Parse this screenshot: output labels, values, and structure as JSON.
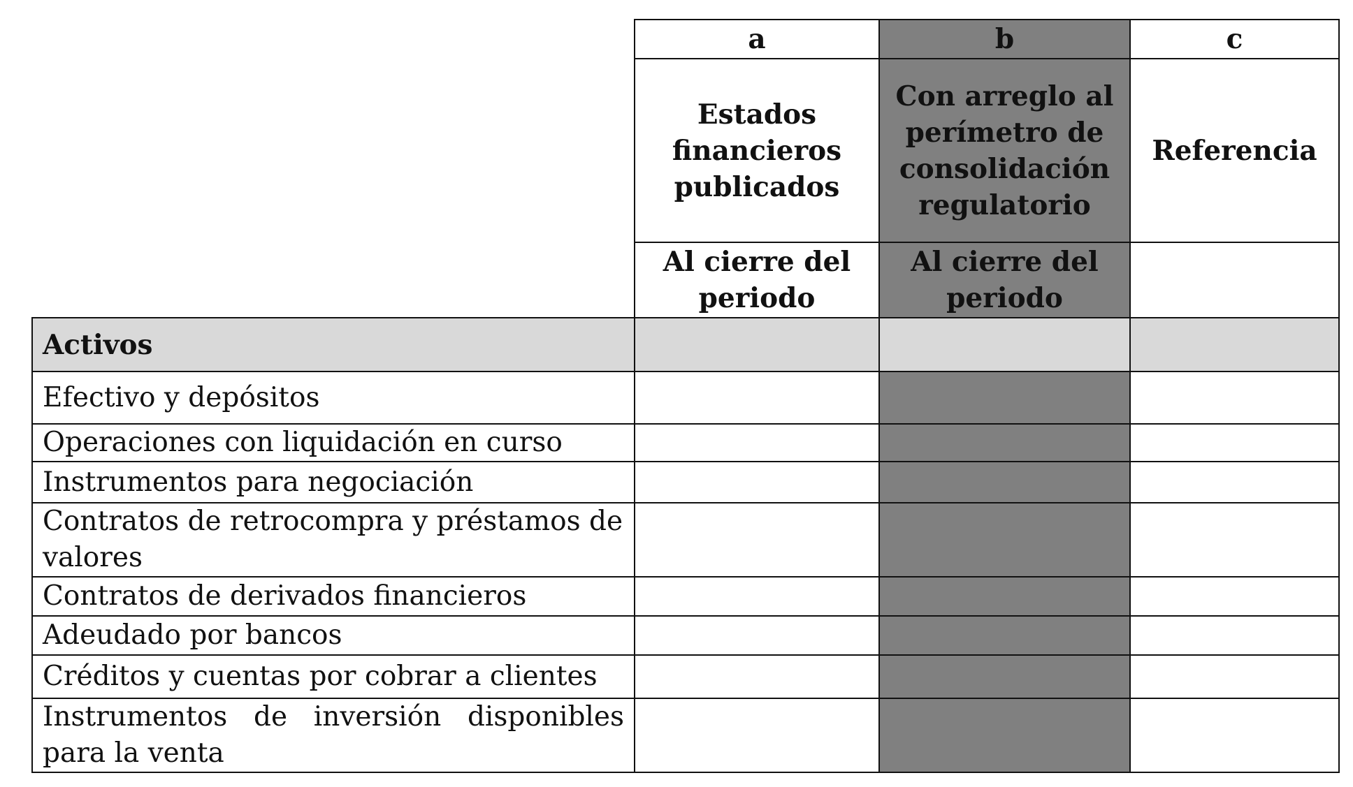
{
  "columns": {
    "letters": [
      "a",
      "b",
      "c"
    ],
    "titles": [
      "Estados financieros publicados",
      "Con arreglo al perímetro de consolidación regulatorio",
      "Referencia"
    ],
    "periods": [
      "Al cierre del periodo",
      "Al cierre del periodo",
      ""
    ]
  },
  "section": "Activos",
  "rows": [
    "Efectivo y depósitos",
    "Operaciones con liquidación en curso",
    "Instrumentos para negociación",
    "Contratos de retrocompra y préstamos de valores",
    "Contratos de derivados financieros",
    "Adeudado por bancos",
    "Créditos y cuentas por cobrar a clientes",
    "Instrumentos de inversión disponibles para la venta"
  ],
  "colors": {
    "shaded_column": "#808080",
    "section_row": "#d9d9d9"
  }
}
